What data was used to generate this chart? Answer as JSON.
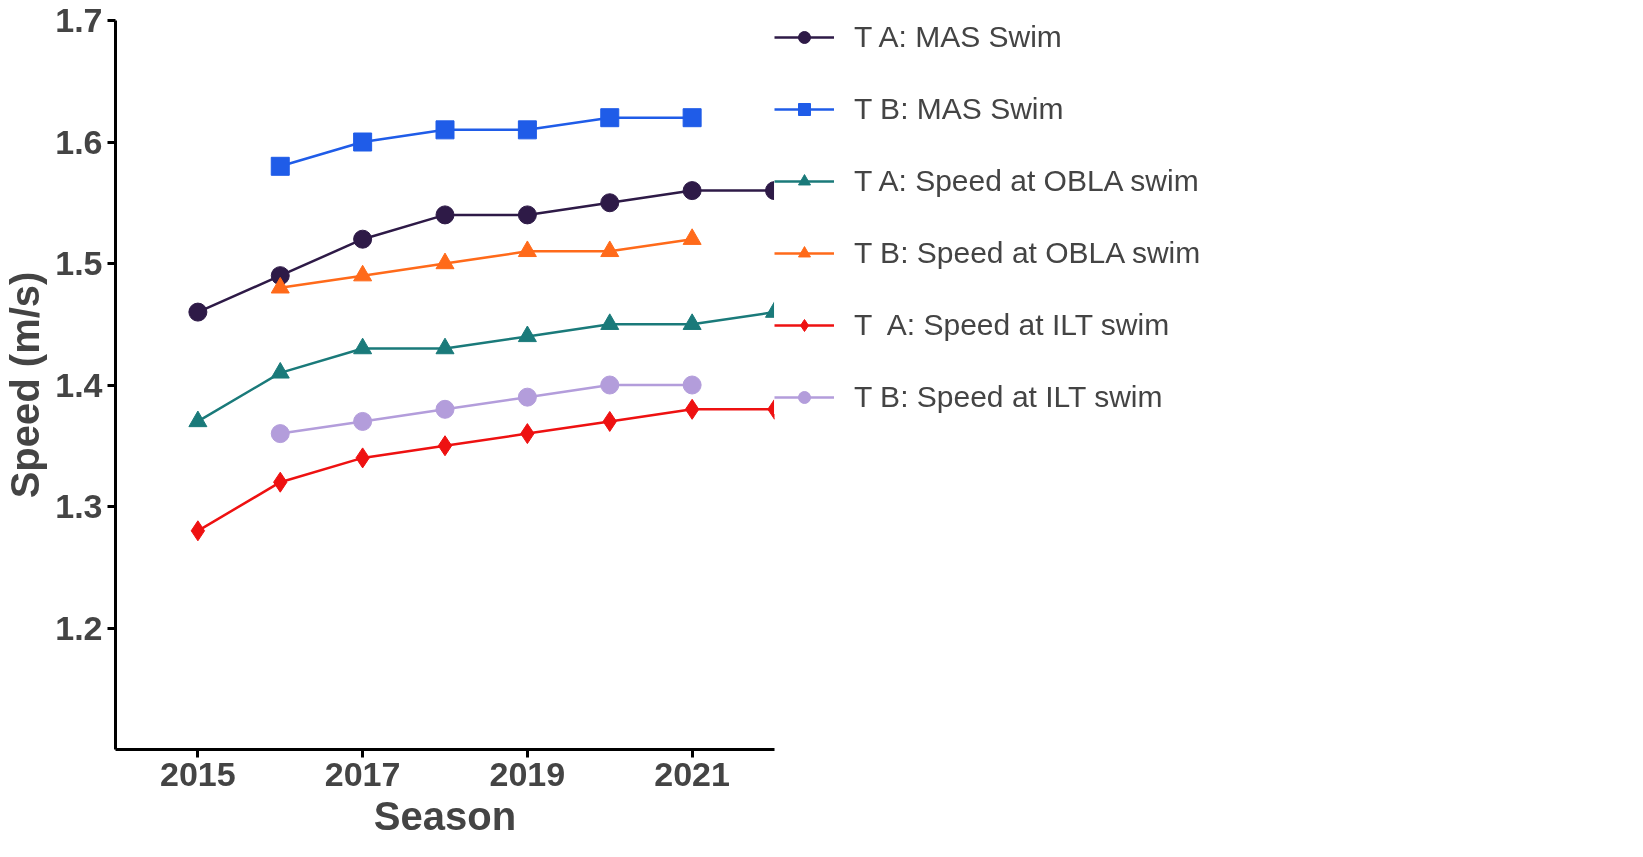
{
  "chart_data": {
    "type": "line",
    "xlabel": "Season",
    "ylabel": "Speed (m/s)",
    "x": [
      2015,
      2016,
      2017,
      2018,
      2019,
      2020,
      2021,
      2022
    ],
    "xlim": [
      2014,
      2022
    ],
    "xticks": [
      2015,
      2017,
      2019,
      2021
    ],
    "ylim": [
      1.1,
      1.7
    ],
    "yticks": [
      1.2,
      1.3,
      1.4,
      1.5,
      1.6,
      1.7
    ],
    "grid": false,
    "legend": "right",
    "line_style": "solid",
    "series": [
      {
        "name": "T A: MAS Swim",
        "color": "#2e1a47",
        "marker": "circle",
        "values": [
          1.46,
          1.49,
          1.52,
          1.54,
          1.54,
          1.55,
          1.56,
          1.56
        ]
      },
      {
        "name": "T B: MAS Swim",
        "color": "#1f5ce8",
        "marker": "square",
        "values": [
          null,
          1.58,
          1.6,
          1.61,
          1.61,
          1.62,
          1.62,
          null
        ]
      },
      {
        "name": "T A: Speed at OBLA swim",
        "color": "#1a7a7a",
        "marker": "triangle",
        "values": [
          1.37,
          1.41,
          1.43,
          1.43,
          1.44,
          1.45,
          1.45,
          1.46
        ]
      },
      {
        "name": "T B: Speed at OBLA swim",
        "color": "#ff6a1a",
        "marker": "triangle",
        "values": [
          null,
          1.48,
          1.49,
          1.5,
          1.51,
          1.51,
          1.52,
          null
        ]
      },
      {
        "name": "T  A: Speed at ILT swim",
        "color": "#ee1111",
        "marker": "diamond",
        "values": [
          1.28,
          1.32,
          1.34,
          1.35,
          1.36,
          1.37,
          1.38,
          1.38
        ]
      },
      {
        "name": "T B: Speed at ILT swim",
        "color": "#b39ddb",
        "marker": "circle",
        "values": [
          null,
          1.36,
          1.37,
          1.38,
          1.39,
          1.4,
          1.4,
          null
        ]
      }
    ]
  }
}
